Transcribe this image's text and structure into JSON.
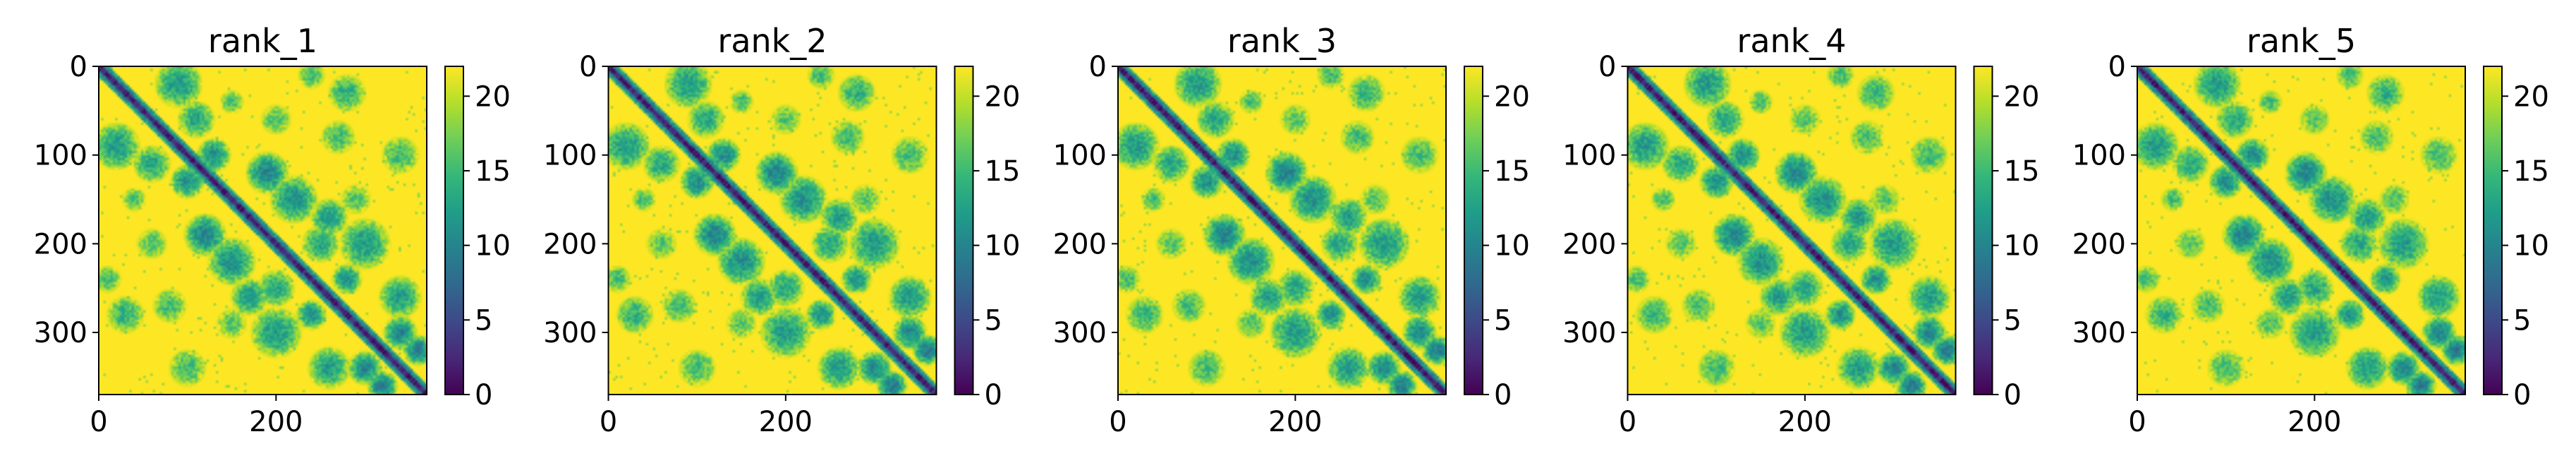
{
  "figure": {
    "colormap": [
      "#440154",
      "#482878",
      "#3e4989",
      "#31688e",
      "#26828e",
      "#1f9e89",
      "#35b779",
      "#6ece58",
      "#b5de2b",
      "#fde725"
    ]
  },
  "chart_data": [
    {
      "type": "heatmap",
      "title": "rank_1",
      "xlim": [
        0,
        370
      ],
      "ylim": [
        370,
        0
      ],
      "x_ticks": [
        "0",
        "200"
      ],
      "y_ticks": [
        "0",
        "100",
        "200",
        "300"
      ],
      "colorbar": {
        "range": [
          0,
          22
        ],
        "ticks": [
          "0",
          "5",
          "10",
          "15",
          "20"
        ]
      }
    },
    {
      "type": "heatmap",
      "title": "rank_2",
      "xlim": [
        0,
        370
      ],
      "ylim": [
        370,
        0
      ],
      "x_ticks": [
        "0",
        "200"
      ],
      "y_ticks": [
        "0",
        "100",
        "200",
        "300"
      ],
      "colorbar": {
        "range": [
          0,
          22
        ],
        "ticks": [
          "0",
          "5",
          "10",
          "15",
          "20"
        ]
      }
    },
    {
      "type": "heatmap",
      "title": "rank_3",
      "xlim": [
        0,
        370
      ],
      "ylim": [
        370,
        0
      ],
      "x_ticks": [
        "0",
        "200"
      ],
      "y_ticks": [
        "0",
        "100",
        "200",
        "300"
      ],
      "colorbar": {
        "range": [
          0,
          22
        ],
        "ticks": [
          "0",
          "5",
          "10",
          "15",
          "20"
        ]
      }
    },
    {
      "type": "heatmap",
      "title": "rank_4",
      "xlim": [
        0,
        370
      ],
      "ylim": [
        370,
        0
      ],
      "x_ticks": [
        "0",
        "200"
      ],
      "y_ticks": [
        "0",
        "100",
        "200",
        "300"
      ],
      "colorbar": {
        "range": [
          0,
          22
        ],
        "ticks": [
          "0",
          "5",
          "10",
          "15",
          "20"
        ]
      }
    },
    {
      "type": "heatmap",
      "title": "rank_5",
      "xlim": [
        0,
        370
      ],
      "ylim": [
        370,
        0
      ],
      "x_ticks": [
        "0",
        "200"
      ],
      "y_ticks": [
        "0",
        "100",
        "200",
        "300"
      ],
      "colorbar": {
        "range": [
          0,
          22
        ],
        "ticks": [
          "0",
          "5",
          "10",
          "15",
          "20"
        ]
      }
    }
  ]
}
